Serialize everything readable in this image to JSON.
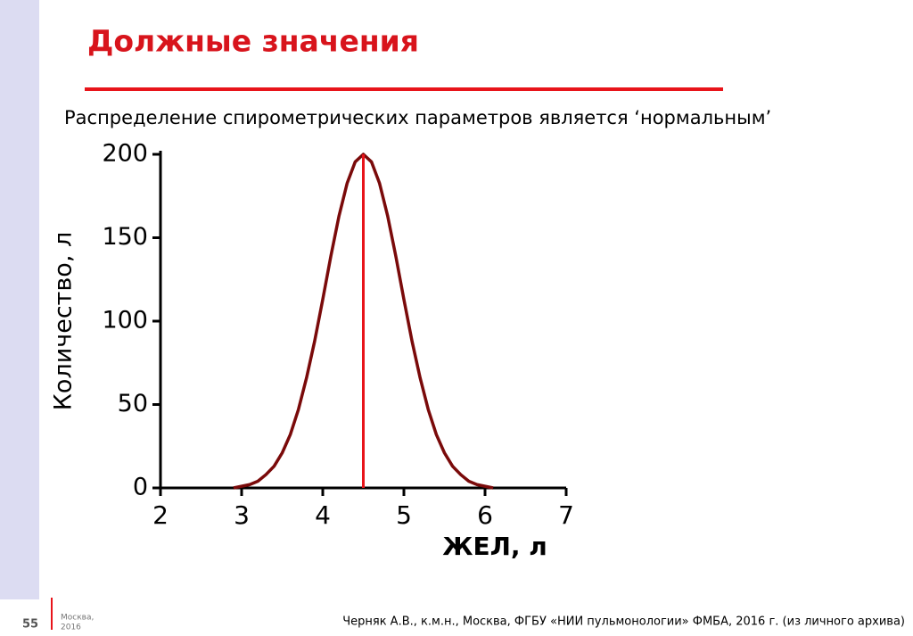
{
  "slide": {
    "title": "Должные значения",
    "subtitle": "Распределение спирометрических параметров  является ‘нормальным’",
    "page_number": "55",
    "place": [
      "Москва,",
      "2016"
    ],
    "citation": "Черняк А.В., к.м.н., Москва, ФГБУ «НИИ пульмонологии» ФМБА, 2016 г. (из личного архива)"
  },
  "chart_data": {
    "type": "line",
    "x_label": "ЖЕЛ, л",
    "y_label": "Количество, л",
    "x": [
      2.9,
      3.0,
      3.1,
      3.2,
      3.3,
      3.4,
      3.5,
      3.6,
      3.7,
      3.8,
      3.9,
      4.0,
      4.1,
      4.2,
      4.3,
      4.4,
      4.5,
      4.6,
      4.7,
      4.8,
      4.9,
      5.0,
      5.1,
      5.2,
      5.3,
      5.4,
      5.5,
      5.6,
      5.7,
      5.8,
      5.9,
      6.0,
      6.1
    ],
    "values": [
      0,
      1,
      2,
      4,
      8,
      13,
      21,
      32,
      47,
      66,
      88,
      113,
      139,
      163,
      182.6,
      195.5,
      200,
      195.5,
      182.6,
      163,
      139,
      113,
      88,
      66,
      47,
      32,
      21,
      13,
      8,
      4,
      2,
      1,
      0
    ],
    "color": "#7a0a0a",
    "vline": {
      "x": 4.5,
      "color": "#e8141a"
    },
    "xlim": [
      2,
      7
    ],
    "ylim": [
      0,
      200
    ],
    "xticks": [
      2,
      3,
      4,
      5,
      6,
      7
    ],
    "yticks": [
      0,
      50,
      100,
      150,
      200
    ]
  }
}
